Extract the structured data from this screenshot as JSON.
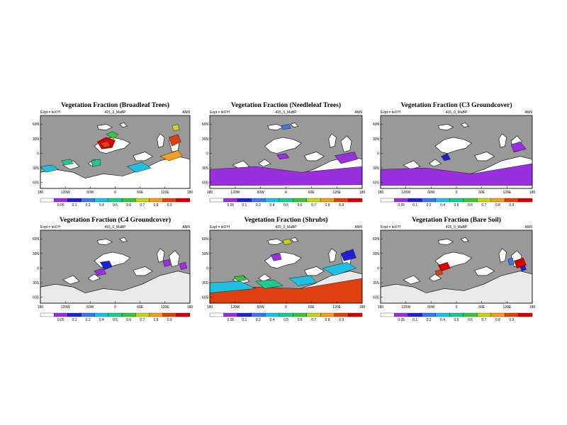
{
  "chart_data": [
    {
      "type": "heatmap",
      "title": "Vegetation Fraction (Broadleaf Trees)",
      "subtitle": "415_0_MaBP",
      "expt_label": "Expt = teXYf",
      "season": "ANN",
      "xticks": [
        "180",
        "120W",
        "60W",
        "0",
        "60E",
        "120E",
        "180"
      ],
      "yticks": [
        "60N",
        "30N",
        "0",
        "30S",
        "60S"
      ],
      "colorbar_ticks": [
        "0.05",
        "0.1",
        "0.2",
        "0.4",
        "0.5",
        "0.6",
        "0.7",
        "0.8",
        "0.9"
      ],
      "colorbar_colors": [
        "#ffffff",
        "#9a2fe0",
        "#2020d0",
        "#3878f0",
        "#20c0e0",
        "#20c890",
        "#40c040",
        "#c8d020",
        "#f0a020",
        "#e04010",
        "#d80000"
      ]
    },
    {
      "type": "heatmap",
      "title": "Vegetation Fraction (Needleleaf Trees)",
      "subtitle": "415_0_MaBP",
      "expt_label": "Expt = teXYf",
      "season": "ANN",
      "xticks": [
        "180",
        "120W",
        "60W",
        "0",
        "60E",
        "120E",
        "180"
      ],
      "yticks": [
        "60N",
        "30N",
        "0",
        "30S",
        "60S"
      ],
      "colorbar_ticks": [
        "0.05",
        "0.1",
        "0.2",
        "0.4",
        "0.5",
        "0.6",
        "0.7",
        "0.8",
        "0.9"
      ],
      "colorbar_colors": [
        "#ffffff",
        "#9a2fe0",
        "#2020d0",
        "#3878f0",
        "#20c0e0",
        "#20c890",
        "#40c040",
        "#c8d020",
        "#f0a020",
        "#e04010",
        "#d80000"
      ]
    },
    {
      "type": "heatmap",
      "title": "Vegetation Fraction (C3 Groundcover)",
      "subtitle": "415_0_MaBP",
      "expt_label": "Expt = teXYf",
      "season": "ANN",
      "xticks": [
        "180",
        "120W",
        "60W",
        "0",
        "60E",
        "120E",
        "180"
      ],
      "yticks": [
        "60N",
        "30N",
        "0",
        "30S",
        "60S"
      ],
      "colorbar_ticks": [
        "0.05",
        "0.1",
        "0.2",
        "0.4",
        "0.5",
        "0.6",
        "0.7",
        "0.8",
        "0.9"
      ],
      "colorbar_colors": [
        "#ffffff",
        "#9a2fe0",
        "#2020d0",
        "#3878f0",
        "#20c0e0",
        "#20c890",
        "#40c040",
        "#c8d020",
        "#f0a020",
        "#e04010",
        "#d80000"
      ]
    },
    {
      "type": "heatmap",
      "title": "Vegetation Fraction (C4 Groundcover)",
      "subtitle": "415_0_MaBP",
      "expt_label": "Expt = teXYf",
      "season": "ANN",
      "xticks": [
        "180",
        "120W",
        "60W",
        "0",
        "60E",
        "120E",
        "180"
      ],
      "yticks": [
        "60N",
        "30N",
        "0",
        "30S",
        "60S"
      ],
      "colorbar_ticks": [
        "0.05",
        "0.1",
        "0.2",
        "0.4",
        "0.5",
        "0.6",
        "0.7",
        "0.8",
        "0.9"
      ],
      "colorbar_colors": [
        "#ffffff",
        "#9a2fe0",
        "#2020d0",
        "#3878f0",
        "#20c0e0",
        "#20c890",
        "#40c040",
        "#c8d020",
        "#f0a020",
        "#e04010",
        "#d80000"
      ]
    },
    {
      "type": "heatmap",
      "title": "Vegetation Fraction (Shrubs)",
      "subtitle": "415_0_MaBP",
      "expt_label": "Expt = teXYf",
      "season": "ANN",
      "xticks": [
        "180",
        "120W",
        "60W",
        "0",
        "60E",
        "120E",
        "180"
      ],
      "yticks": [
        "60N",
        "30N",
        "0",
        "30S",
        "60S"
      ],
      "colorbar_ticks": [
        "0.05",
        "0.1",
        "0.2",
        "0.4",
        "0.5",
        "0.6",
        "0.7",
        "0.8",
        "0.9"
      ],
      "colorbar_colors": [
        "#ffffff",
        "#9a2fe0",
        "#2020d0",
        "#3878f0",
        "#20c0e0",
        "#20c890",
        "#40c040",
        "#c8d020",
        "#f0a020",
        "#e04010",
        "#d80000"
      ]
    },
    {
      "type": "heatmap",
      "title": "Vegetation Fraction (Bare Soil)",
      "subtitle": "415_0_MaBP",
      "expt_label": "Expt = teXYf",
      "season": "ANN",
      "xticks": [
        "180",
        "120W",
        "60W",
        "0",
        "60E",
        "120E",
        "180"
      ],
      "yticks": [
        "60N",
        "30N",
        "0",
        "30S",
        "60S"
      ],
      "colorbar_ticks": [
        "0.05",
        "0.1",
        "0.2",
        "0.4",
        "0.5",
        "0.6",
        "0.7",
        "0.8",
        "0.9"
      ],
      "colorbar_colors": [
        "#ffffff",
        "#9a2fe0",
        "#2020d0",
        "#3878f0",
        "#20c0e0",
        "#20c890",
        "#40c040",
        "#c8d020",
        "#f0a020",
        "#e04010",
        "#d80000"
      ]
    }
  ],
  "colors": {
    "ocean": "#999999",
    "frame": "#000000"
  }
}
